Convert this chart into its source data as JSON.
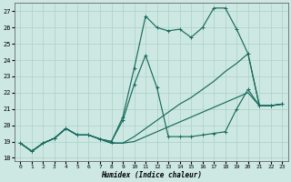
{
  "xlabel": "Humidex (Indice chaleur)",
  "xlim": [
    -0.5,
    23.5
  ],
  "ylim": [
    17.8,
    27.5
  ],
  "xticks": [
    0,
    1,
    2,
    3,
    4,
    5,
    6,
    7,
    8,
    9,
    10,
    11,
    12,
    13,
    14,
    15,
    16,
    17,
    18,
    19,
    20,
    21,
    22,
    23
  ],
  "yticks": [
    18,
    19,
    20,
    21,
    22,
    23,
    24,
    25,
    26,
    27
  ],
  "background_color": "#cde8e2",
  "grid_color": "#aad0c8",
  "line_color": "#1a6b5e",
  "line1_x": [
    0,
    1,
    2,
    3,
    4,
    5,
    6,
    7,
    8,
    9,
    10,
    11,
    12,
    13,
    14,
    15,
    16,
    17,
    18,
    19,
    20,
    21,
    22,
    23
  ],
  "line1_y": [
    18.9,
    18.4,
    18.9,
    19.2,
    19.8,
    19.4,
    19.4,
    19.15,
    19.0,
    20.5,
    23.5,
    26.7,
    26.0,
    25.8,
    25.9,
    25.4,
    26.0,
    27.2,
    27.2,
    25.9,
    24.4,
    21.2,
    21.2,
    21.3
  ],
  "line2_x": [
    0,
    1,
    2,
    3,
    4,
    5,
    6,
    7,
    8,
    9,
    10,
    11,
    12,
    13,
    14,
    15,
    16,
    17,
    18,
    19,
    20,
    21,
    22,
    23
  ],
  "line2_y": [
    18.9,
    18.4,
    18.9,
    19.2,
    19.8,
    19.4,
    19.4,
    19.15,
    19.0,
    20.3,
    22.5,
    24.3,
    22.3,
    19.3,
    19.3,
    19.3,
    19.4,
    19.5,
    19.6,
    21.0,
    22.2,
    21.2,
    21.2,
    21.3
  ],
  "line3_x": [
    0,
    1,
    2,
    3,
    4,
    5,
    6,
    7,
    8,
    9,
    10,
    11,
    12,
    13,
    14,
    15,
    16,
    17,
    18,
    19,
    20,
    21,
    22,
    23
  ],
  "line3_y": [
    18.9,
    18.4,
    18.9,
    19.2,
    19.8,
    19.4,
    19.4,
    19.15,
    18.9,
    18.9,
    19.3,
    19.8,
    20.3,
    20.8,
    21.3,
    21.7,
    22.2,
    22.7,
    23.3,
    23.8,
    24.4,
    21.2,
    21.2,
    21.3
  ],
  "line4_x": [
    0,
    1,
    2,
    3,
    4,
    5,
    6,
    7,
    8,
    9,
    10,
    11,
    12,
    13,
    14,
    15,
    16,
    17,
    18,
    19,
    20,
    21,
    22,
    23
  ],
  "line4_y": [
    18.9,
    18.4,
    18.9,
    19.2,
    19.8,
    19.4,
    19.4,
    19.15,
    18.9,
    18.9,
    19.0,
    19.3,
    19.6,
    19.9,
    20.2,
    20.5,
    20.8,
    21.1,
    21.4,
    21.7,
    22.0,
    21.2,
    21.2,
    21.3
  ]
}
